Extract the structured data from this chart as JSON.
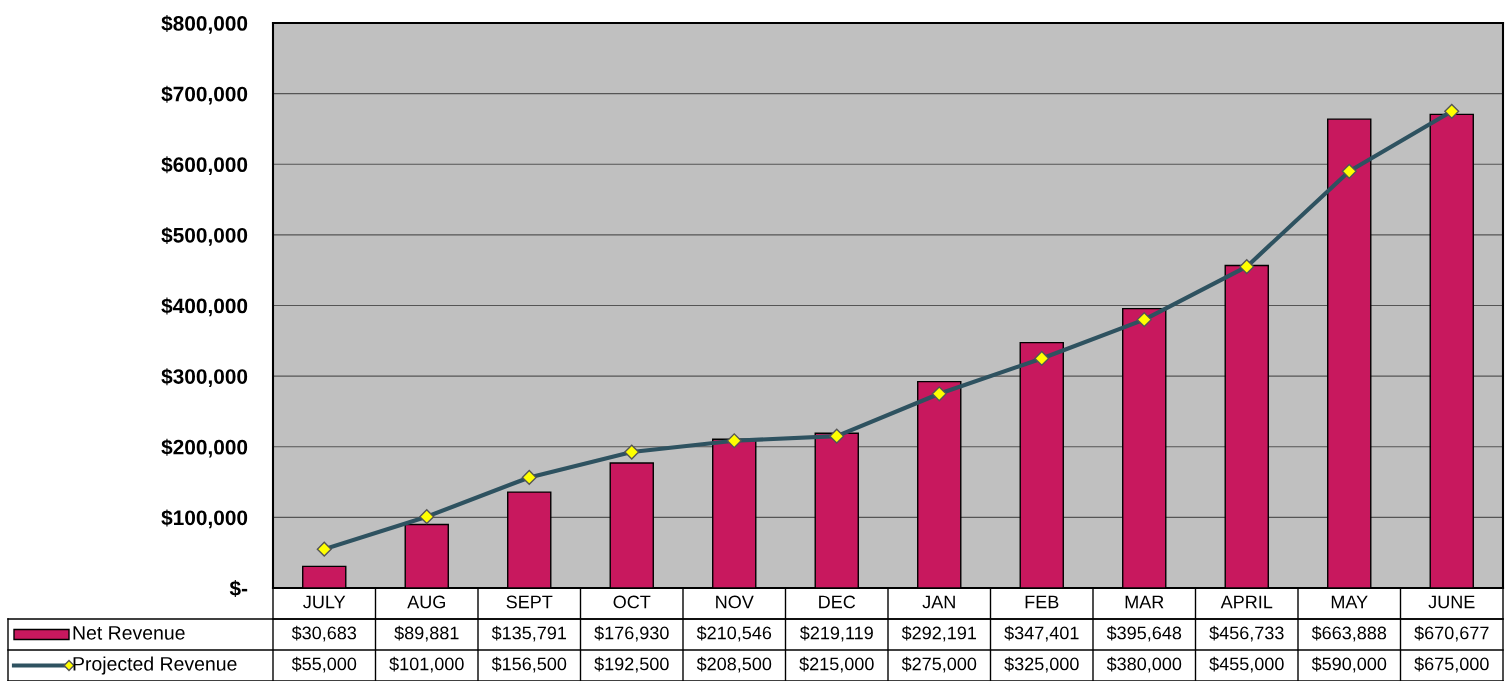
{
  "chart_data": {
    "type": "bar",
    "categories": [
      "JULY",
      "AUG",
      "SEPT",
      "OCT",
      "NOV",
      "DEC",
      "JAN",
      "FEB",
      "MAR",
      "APRIL",
      "MAY",
      "JUNE"
    ],
    "series": [
      {
        "name": "Net Revenue",
        "color": "#c8185e",
        "values": [
          30683,
          89881,
          135791,
          176930,
          210546,
          219119,
          292191,
          347401,
          395648,
          456733,
          663888,
          670677
        ],
        "value_labels": [
          "$30,683",
          "$89,881",
          "$135,791",
          "$176,930",
          "$210,546",
          "$219,119",
          "$292,191",
          "$347,401",
          "$395,648",
          "$456,733",
          "$663,888",
          "$670,677"
        ]
      },
      {
        "name": "Projected Revenue",
        "type": "line",
        "color": "#2e5260",
        "marker": "diamond",
        "values": [
          55000,
          101000,
          156500,
          192500,
          208500,
          215000,
          275000,
          325000,
          380000,
          455000,
          590000,
          675000
        ],
        "value_labels": [
          "$55,000",
          "$101,000",
          "$156,500",
          "$192,500",
          "$208,500",
          "$215,000",
          "$275,000",
          "$325,000",
          "$380,000",
          "$455,000",
          "$590,000",
          "$675,000"
        ]
      }
    ],
    "ylim": [
      0,
      800000
    ],
    "yticks": [
      {
        "value": 0,
        "label": "$-"
      },
      {
        "value": 100000,
        "label": "$100,000"
      },
      {
        "value": 200000,
        "label": "$200,000"
      },
      {
        "value": 300000,
        "label": "$300,000"
      },
      {
        "value": 400000,
        "label": "$400,000"
      },
      {
        "value": 500000,
        "label": "$500,000"
      },
      {
        "value": 600000,
        "label": "$600,000"
      },
      {
        "value": 700000,
        "label": "$700,000"
      },
      {
        "value": 800000,
        "label": "$800,000"
      }
    ],
    "grid": "y",
    "legend": "bottom left"
  }
}
